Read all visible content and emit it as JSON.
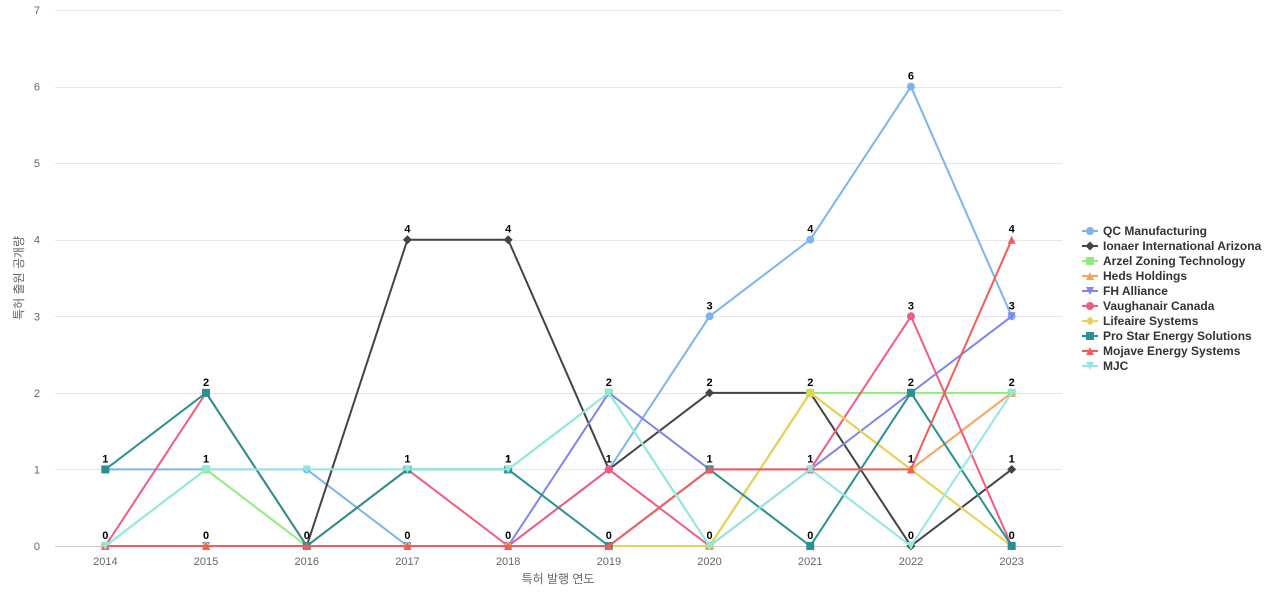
{
  "chart_data": {
    "type": "line",
    "title": "",
    "xlabel": "특허 발행 연도",
    "ylabel": "특허 출원 공개량",
    "x": [
      "2014",
      "2015",
      "2016",
      "2017",
      "2018",
      "2019",
      "2020",
      "2021",
      "2022",
      "2023"
    ],
    "ylim": [
      0,
      7
    ],
    "yticks": [
      0,
      1,
      2,
      3,
      4,
      5,
      6,
      7
    ],
    "grid": true,
    "legend": "right",
    "series": [
      {
        "name": "QC Manufacturing",
        "color": "#7cb5ec",
        "marker": "circle",
        "values": [
          1,
          1,
          1,
          0,
          0,
          1,
          3,
          4,
          6,
          3
        ],
        "labels": [
          1,
          null,
          null,
          null,
          null,
          null,
          3,
          4,
          6,
          3
        ]
      },
      {
        "name": "Ionaer International Arizona",
        "color": "#434348",
        "marker": "diamond",
        "values": [
          0,
          0,
          0,
          4,
          4,
          1,
          2,
          2,
          0,
          1
        ],
        "labels": [
          null,
          null,
          null,
          4,
          4,
          1,
          2,
          2,
          0,
          1
        ]
      },
      {
        "name": "Arzel Zoning Technology",
        "color": "#90ed7d",
        "marker": "square",
        "values": [
          0,
          1,
          0,
          1,
          1,
          2,
          0,
          2,
          2,
          2
        ],
        "labels": [
          null,
          null,
          null,
          null,
          null,
          null,
          null,
          null,
          null,
          null
        ]
      },
      {
        "name": "Heds Holdings",
        "color": "#f7a35c",
        "marker": "triangle",
        "values": [
          0,
          0,
          0,
          0,
          0,
          0,
          0,
          2,
          1,
          2
        ],
        "labels": [
          null,
          null,
          null,
          null,
          null,
          null,
          null,
          null,
          null,
          2
        ]
      },
      {
        "name": "FH Alliance",
        "color": "#8085e9",
        "marker": "triangle-down",
        "values": [
          0,
          0,
          0,
          0,
          0,
          2,
          1,
          1,
          2,
          3
        ],
        "labels": [
          null,
          null,
          null,
          null,
          null,
          null,
          null,
          null,
          null,
          null
        ]
      },
      {
        "name": "Vaughanair Canada",
        "color": "#f15c80",
        "marker": "circle",
        "values": [
          0,
          2,
          0,
          1,
          0,
          1,
          0,
          1,
          3,
          0
        ],
        "labels": [
          null,
          2,
          null,
          null,
          null,
          null,
          null,
          null,
          3,
          null
        ]
      },
      {
        "name": "Lifeaire Systems",
        "color": "#e4d354",
        "marker": "diamond",
        "values": [
          0,
          0,
          0,
          0,
          0,
          0,
          0,
          2,
          1,
          0
        ],
        "labels": [
          null,
          null,
          null,
          null,
          null,
          null,
          null,
          null,
          null,
          null
        ]
      },
      {
        "name": "Pro Star Energy Solutions",
        "color": "#2b908f",
        "marker": "square",
        "values": [
          1,
          2,
          0,
          1,
          1,
          0,
          1,
          0,
          2,
          0
        ],
        "labels": [
          null,
          null,
          0,
          1,
          1,
          0,
          1,
          0,
          2,
          0
        ]
      },
      {
        "name": "Mojave Energy Systems",
        "color": "#f45b5b",
        "marker": "triangle",
        "values": [
          0,
          0,
          0,
          0,
          0,
          0,
          1,
          1,
          1,
          4
        ],
        "labels": [
          0,
          0,
          null,
          0,
          0,
          null,
          null,
          1,
          1,
          4
        ]
      },
      {
        "name": "MJC",
        "color": "#91e8e1",
        "marker": "triangle-down",
        "values": [
          0,
          1,
          1,
          1,
          1,
          2,
          0,
          1,
          0,
          2
        ],
        "labels": [
          null,
          1,
          null,
          null,
          1,
          2,
          0,
          null,
          null,
          null
        ]
      }
    ]
  }
}
